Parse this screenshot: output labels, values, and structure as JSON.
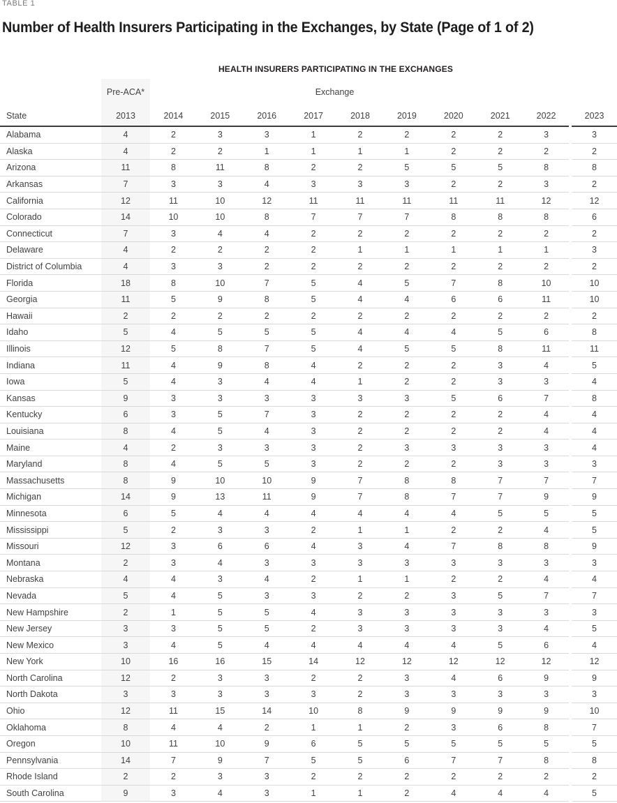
{
  "page": {
    "table_label": "TABLE 1",
    "title": "Number of Health Insurers Participating in the Exchanges, by State (Page of 1 of 2)",
    "table_heading": "HEALTH INSURERS PARTICIPATING IN THE EXCHANGES"
  },
  "table": {
    "group_headers": {
      "pre_aca": "Pre-ACA*",
      "exchange": "Exchange"
    },
    "state_header": "State",
    "years": [
      "2013",
      "2014",
      "2015",
      "2016",
      "2017",
      "2018",
      "2019",
      "2020",
      "2021",
      "2022",
      "2023"
    ],
    "rows": [
      {
        "state": "Alabama",
        "values": [
          4,
          2,
          3,
          3,
          1,
          2,
          2,
          2,
          2,
          3,
          3
        ]
      },
      {
        "state": "Alaska",
        "values": [
          4,
          2,
          2,
          1,
          1,
          1,
          1,
          2,
          2,
          2,
          2
        ]
      },
      {
        "state": "Arizona",
        "values": [
          11,
          8,
          11,
          8,
          2,
          2,
          5,
          5,
          5,
          8,
          8
        ]
      },
      {
        "state": "Arkansas",
        "values": [
          7,
          3,
          3,
          4,
          3,
          3,
          3,
          2,
          2,
          3,
          2
        ]
      },
      {
        "state": "California",
        "values": [
          12,
          11,
          10,
          12,
          11,
          11,
          11,
          11,
          11,
          12,
          12
        ]
      },
      {
        "state": "Colorado",
        "values": [
          14,
          10,
          10,
          8,
          7,
          7,
          7,
          8,
          8,
          8,
          6
        ]
      },
      {
        "state": "Connecticut",
        "values": [
          7,
          3,
          4,
          4,
          2,
          2,
          2,
          2,
          2,
          2,
          2
        ]
      },
      {
        "state": "Delaware",
        "values": [
          4,
          2,
          2,
          2,
          2,
          1,
          1,
          1,
          1,
          1,
          3
        ]
      },
      {
        "state": "District of Columbia",
        "values": [
          4,
          3,
          3,
          2,
          2,
          2,
          2,
          2,
          2,
          2,
          2
        ]
      },
      {
        "state": "Florida",
        "values": [
          18,
          8,
          10,
          7,
          5,
          4,
          5,
          7,
          8,
          10,
          10
        ]
      },
      {
        "state": "Georgia",
        "values": [
          11,
          5,
          9,
          8,
          5,
          4,
          4,
          6,
          6,
          11,
          10
        ]
      },
      {
        "state": "Hawaii",
        "values": [
          2,
          2,
          2,
          2,
          2,
          2,
          2,
          2,
          2,
          2,
          2
        ]
      },
      {
        "state": "Idaho",
        "values": [
          5,
          4,
          5,
          5,
          5,
          4,
          4,
          4,
          5,
          6,
          8
        ]
      },
      {
        "state": "Illinois",
        "values": [
          12,
          5,
          8,
          7,
          5,
          4,
          5,
          5,
          8,
          11,
          11
        ]
      },
      {
        "state": "Indiana",
        "values": [
          11,
          4,
          9,
          8,
          4,
          2,
          2,
          2,
          3,
          4,
          5
        ]
      },
      {
        "state": "Iowa",
        "values": [
          5,
          4,
          3,
          4,
          4,
          1,
          2,
          2,
          3,
          3,
          4
        ]
      },
      {
        "state": "Kansas",
        "values": [
          9,
          3,
          3,
          3,
          3,
          3,
          3,
          5,
          6,
          7,
          8
        ]
      },
      {
        "state": "Kentucky",
        "values": [
          6,
          3,
          5,
          7,
          3,
          2,
          2,
          2,
          2,
          4,
          4
        ]
      },
      {
        "state": "Louisiana",
        "values": [
          8,
          4,
          5,
          4,
          3,
          2,
          2,
          2,
          2,
          4,
          4
        ]
      },
      {
        "state": "Maine",
        "values": [
          4,
          2,
          3,
          3,
          3,
          2,
          3,
          3,
          3,
          3,
          4
        ]
      },
      {
        "state": "Maryland",
        "values": [
          8,
          4,
          5,
          5,
          3,
          2,
          2,
          2,
          3,
          3,
          3
        ]
      },
      {
        "state": "Massachusetts",
        "values": [
          8,
          9,
          10,
          10,
          9,
          7,
          8,
          8,
          7,
          7,
          7
        ]
      },
      {
        "state": "Michigan",
        "values": [
          14,
          9,
          13,
          11,
          9,
          7,
          8,
          7,
          7,
          9,
          9
        ]
      },
      {
        "state": "Minnesota",
        "values": [
          6,
          5,
          4,
          4,
          4,
          4,
          4,
          4,
          5,
          5,
          5
        ]
      },
      {
        "state": "Mississippi",
        "values": [
          5,
          2,
          3,
          3,
          2,
          1,
          1,
          2,
          2,
          4,
          5
        ]
      },
      {
        "state": "Missouri",
        "values": [
          12,
          3,
          6,
          6,
          4,
          3,
          4,
          7,
          8,
          8,
          9
        ]
      },
      {
        "state": "Montana",
        "values": [
          2,
          3,
          4,
          3,
          3,
          3,
          3,
          3,
          3,
          3,
          3
        ]
      },
      {
        "state": "Nebraska",
        "values": [
          4,
          4,
          3,
          4,
          2,
          1,
          1,
          2,
          2,
          4,
          4
        ]
      },
      {
        "state": "Nevada",
        "values": [
          5,
          4,
          5,
          3,
          3,
          2,
          2,
          3,
          5,
          7,
          7
        ]
      },
      {
        "state": "New Hampshire",
        "values": [
          2,
          1,
          5,
          5,
          4,
          3,
          3,
          3,
          3,
          3,
          3
        ]
      },
      {
        "state": "New Jersey",
        "values": [
          3,
          3,
          5,
          5,
          2,
          3,
          3,
          3,
          3,
          4,
          5
        ]
      },
      {
        "state": "New Mexico",
        "values": [
          3,
          4,
          5,
          4,
          4,
          4,
          4,
          4,
          5,
          6,
          4
        ]
      },
      {
        "state": "New York",
        "values": [
          10,
          16,
          16,
          15,
          14,
          12,
          12,
          12,
          12,
          12,
          12
        ]
      },
      {
        "state": "North Carolina",
        "values": [
          12,
          2,
          3,
          3,
          2,
          2,
          3,
          4,
          6,
          9,
          9
        ]
      },
      {
        "state": "North Dakota",
        "values": [
          3,
          3,
          3,
          3,
          3,
          2,
          3,
          3,
          3,
          3,
          3
        ]
      },
      {
        "state": "Ohio",
        "values": [
          12,
          11,
          15,
          14,
          10,
          8,
          9,
          9,
          9,
          9,
          10
        ]
      },
      {
        "state": "Oklahoma",
        "values": [
          8,
          4,
          4,
          2,
          1,
          1,
          2,
          3,
          6,
          8,
          7
        ]
      },
      {
        "state": "Oregon",
        "values": [
          10,
          11,
          10,
          9,
          6,
          5,
          5,
          5,
          5,
          5,
          5
        ]
      },
      {
        "state": "Pennsylvania",
        "values": [
          14,
          7,
          9,
          7,
          5,
          5,
          6,
          7,
          7,
          8,
          8
        ]
      },
      {
        "state": "Rhode Island",
        "values": [
          2,
          2,
          3,
          3,
          2,
          2,
          2,
          2,
          2,
          2,
          2
        ]
      },
      {
        "state": "South Carolina",
        "values": [
          9,
          3,
          4,
          3,
          1,
          1,
          2,
          4,
          4,
          4,
          5
        ]
      }
    ]
  },
  "colors": {
    "title_text": "#1d1d1f",
    "body_text": "#414042",
    "label_gray": "#77787b",
    "row_divider": "#d9d9d9",
    "header_rule": "#3b3b3b",
    "pre_aca_column_shade": "#f6f6f6"
  }
}
